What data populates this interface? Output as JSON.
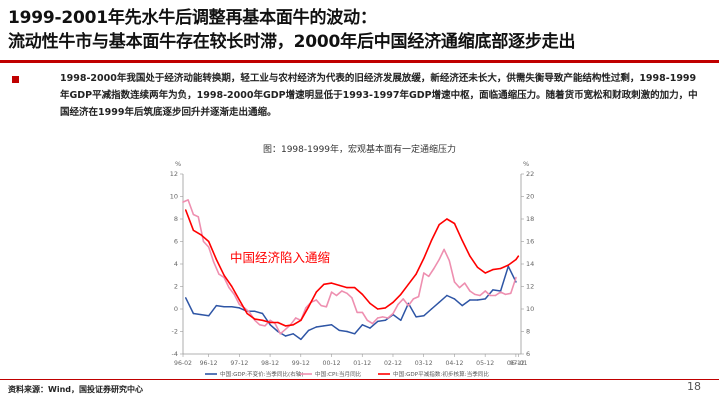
{
  "slide": {
    "title_line1": "1999-2001年先水牛后调整再基本面牛的波动：",
    "title_line2": "流动性牛市与基本面牛存在较长时滞，2000年后中国经济通缩底部逐步走出",
    "bullet": "1998-2000年我国处于经济动能转换期，轻工业与农村经济为代表的旧经济发展放缓，新经济还未长大，供需失衡导致产能结构性过剩，1998-1999年GDP平减指数连续两年为负，1998-2000年GDP增速明显低于1993-1997年GDP增速中枢，面临通缩压力。随着货币宽松和财政刺激的加力，中国经济在1999年后筑底逐步回升并逐渐走出通缩。",
    "source": "资料来源：Wind，国投证券研究中心",
    "page_number": "18"
  },
  "chart_data": {
    "type": "line",
    "title": "图：1998-1999年，宏观基本面有一定通缩压力",
    "annotation": "中国经济陷入通缩",
    "left_axis": {
      "unit": "%",
      "ylim": [
        -4,
        12
      ],
      "ticks": [
        -4,
        -2,
        0,
        2,
        4,
        6,
        8,
        10,
        12
      ]
    },
    "right_axis": {
      "unit": "%",
      "ylim": [
        6,
        22
      ],
      "ticks": [
        6,
        8,
        10,
        12,
        14,
        16,
        18,
        20,
        22
      ]
    },
    "x_ticks": [
      "96-02",
      "96-12",
      "97-12",
      "98-12",
      "99-12",
      "00-12",
      "01-12",
      "02-12",
      "03-12",
      "04-12",
      "05-12",
      "06-12",
      "07-01"
    ],
    "xlim": [
      1996.083,
      2007.083
    ],
    "legend": [
      "中国:GDP:不变价:当季同比(右轴)",
      "中国:CPI:当月同比",
      "中国:GDP平减指数:初步核算:当季同比"
    ],
    "colors": {
      "gdp_real": "#2e55a5",
      "cpi": "#ee8fb0",
      "deflator": "#ff0000",
      "axis": "#999999",
      "annotation": "#ff0000"
    },
    "series": [
      {
        "name": "中国:GDP:不变价:当季同比(右轴)",
        "axis": "right",
        "color": "#2e55a5",
        "x": [
          1996.17,
          1996.42,
          1996.67,
          1996.92,
          1997.17,
          1997.42,
          1997.67,
          1997.92,
          1998.17,
          1998.42,
          1998.67,
          1998.92,
          1999.17,
          1999.42,
          1999.67,
          1999.92,
          2000.17,
          2000.42,
          2000.67,
          2000.92,
          2001.17,
          2001.42,
          2001.67,
          2001.92,
          2002.17,
          2002.42,
          2002.67,
          2002.92,
          2003.17,
          2003.42,
          2003.67,
          2003.92,
          2004.17,
          2004.42,
          2004.67,
          2004.92,
          2005.17,
          2005.42,
          2005.67,
          2005.92,
          2006.17,
          2006.42,
          2006.67,
          2006.92
        ],
        "y": [
          11.0,
          9.6,
          9.5,
          9.4,
          10.3,
          10.2,
          10.2,
          10.1,
          9.8,
          9.8,
          9.6,
          8.6,
          8.0,
          7.6,
          7.8,
          7.3,
          8.1,
          8.4,
          8.5,
          8.6,
          8.1,
          8.0,
          7.8,
          8.6,
          8.3,
          8.9,
          9.0,
          9.5,
          9.0,
          10.5,
          9.3,
          9.4,
          10.0,
          10.6,
          11.2,
          10.9,
          10.3,
          10.8,
          10.8,
          10.9,
          11.7,
          11.6,
          13.8,
          12.4
        ]
      },
      {
        "name": "中国:CPI:当月同比",
        "axis": "left",
        "color": "#ee8fb0",
        "x": [
          1996.08,
          1996.25,
          1996.42,
          1996.58,
          1996.75,
          1996.92,
          1997.08,
          1997.25,
          1997.42,
          1997.58,
          1997.75,
          1997.92,
          1998.08,
          1998.25,
          1998.42,
          1998.58,
          1998.75,
          1998.92,
          1999.08,
          1999.25,
          1999.42,
          1999.58,
          1999.75,
          1999.92,
          2000.08,
          2000.25,
          2000.42,
          2000.58,
          2000.75,
          2000.92,
          2001.08,
          2001.25,
          2001.42,
          2001.58,
          2001.75,
          2001.92,
          2002.08,
          2002.25,
          2002.42,
          2002.58,
          2002.75,
          2002.92,
          2003.08,
          2003.25,
          2003.42,
          2003.58,
          2003.75,
          2003.92,
          2004.08,
          2004.25,
          2004.42,
          2004.58,
          2004.75,
          2004.92,
          2005.08,
          2005.25,
          2005.42,
          2005.58,
          2005.75,
          2005.92,
          2006.08,
          2006.25,
          2006.42,
          2006.58,
          2006.75,
          2006.92
        ],
        "y": [
          9.5,
          9.7,
          8.4,
          8.2,
          6.0,
          5.5,
          4.2,
          3.1,
          2.8,
          1.9,
          1.3,
          0.4,
          0.1,
          -0.3,
          -1.0,
          -1.4,
          -1.5,
          -1.0,
          -1.3,
          -2.2,
          -1.8,
          -1.4,
          -0.8,
          -1.0,
          0.1,
          0.6,
          0.8,
          0.3,
          0.2,
          1.5,
          1.2,
          1.6,
          1.4,
          1.0,
          -0.3,
          -0.3,
          -1.0,
          -1.3,
          -0.8,
          -0.7,
          -0.8,
          -0.4,
          0.4,
          0.9,
          0.3,
          0.9,
          1.1,
          3.2,
          2.9,
          3.6,
          4.4,
          5.3,
          4.3,
          2.4,
          1.9,
          2.3,
          1.6,
          1.3,
          1.2,
          1.6,
          1.2,
          1.2,
          1.5,
          1.3,
          1.4,
          2.8
        ]
      },
      {
        "name": "中国:GDP平减指数:初步核算:当季同比",
        "axis": "left",
        "color": "#ff0000",
        "x": [
          1996.17,
          1996.42,
          1996.67,
          1996.92,
          1997.17,
          1997.42,
          1997.67,
          1997.92,
          1998.17,
          1998.42,
          1998.67,
          1998.92,
          1999.17,
          1999.42,
          1999.67,
          1999.92,
          2000.17,
          2000.42,
          2000.67,
          2000.92,
          2001.17,
          2001.42,
          2001.67,
          2001.92,
          2002.17,
          2002.42,
          2002.67,
          2002.92,
          2003.17,
          2003.42,
          2003.67,
          2003.92,
          2004.17,
          2004.42,
          2004.67,
          2004.92,
          2005.17,
          2005.42,
          2005.67,
          2005.92,
          2006.17,
          2006.42,
          2006.67,
          2006.92,
          2007.0
        ],
        "y": [
          8.8,
          7.0,
          6.6,
          6.0,
          4.4,
          3.0,
          2.0,
          0.8,
          -0.4,
          -0.9,
          -1.0,
          -1.2,
          -1.2,
          -1.5,
          -1.4,
          -1.0,
          0.2,
          1.5,
          2.2,
          2.3,
          2.1,
          1.9,
          1.9,
          1.3,
          0.5,
          0.0,
          0.1,
          0.6,
          1.3,
          2.2,
          3.1,
          4.5,
          6.1,
          7.5,
          8.0,
          7.6,
          6.1,
          4.7,
          3.7,
          3.2,
          3.5,
          3.6,
          3.9,
          4.4,
          4.7
        ]
      }
    ]
  }
}
